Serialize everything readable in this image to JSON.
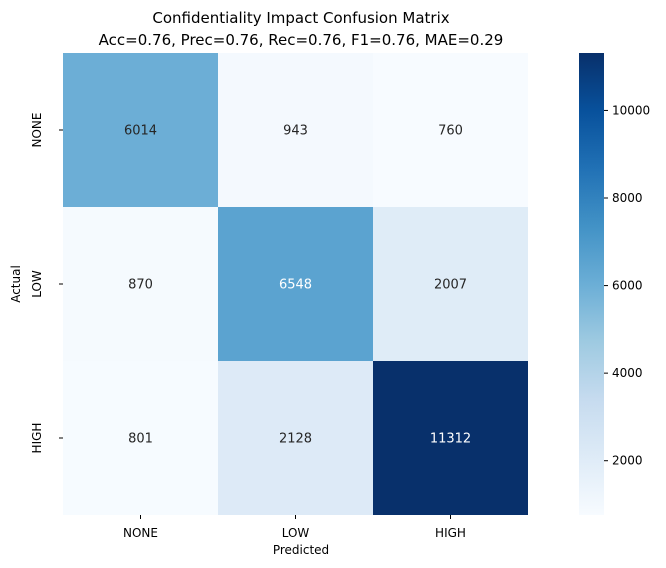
{
  "chart_data": {
    "type": "heatmap",
    "title": "Confidentiality Impact Confusion Matrix",
    "subtitle": "Acc=0.76, Prec=0.76, Rec=0.76, F1=0.76, MAE=0.29",
    "xlabel": "Predicted",
    "ylabel": "Actual",
    "x_categories": [
      "NONE",
      "LOW",
      "HIGH"
    ],
    "y_categories": [
      "NONE",
      "LOW",
      "HIGH"
    ],
    "values": [
      [
        6014,
        943,
        760
      ],
      [
        870,
        6548,
        2007
      ],
      [
        801,
        2128,
        11312
      ]
    ],
    "colorbar": {
      "colormap": "Blues",
      "min": 760,
      "max": 11312,
      "ticks": [
        2000,
        4000,
        6000,
        8000,
        10000
      ]
    }
  }
}
